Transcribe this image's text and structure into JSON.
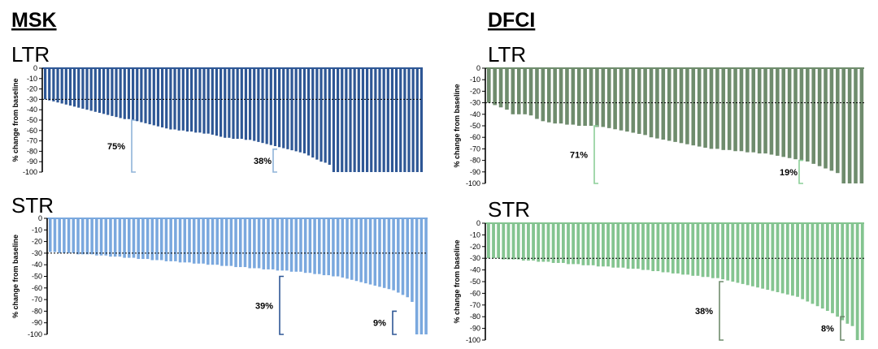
{
  "headers": {
    "left": "MSK",
    "right": "DFCI"
  },
  "colors": {
    "msk_ltr": "#2e5795",
    "msk_str": "#7aa8de",
    "dfci_ltr": "#6f8c6d",
    "dfci_str": "#84c490",
    "msk_ltr_bracket": "#8fb4d9",
    "msk_str_bracket": "#2e5795",
    "dfci_ltr_bracket": "#8ccf98",
    "dfci_str_bracket": "#6f8c6d"
  },
  "chart_data": [
    {
      "id": "msk-ltr",
      "type": "bar",
      "title": "LTR",
      "ylabel": "% change from baseline",
      "ylim": [
        -100,
        0
      ],
      "yticks": [
        "0",
        "-10",
        "-20",
        "-30",
        "-40",
        "-50",
        "-60",
        "-70",
        "-80",
        "-90",
        "-100"
      ],
      "threshold": -30,
      "values": [
        -30,
        -31,
        -32,
        -33,
        -34,
        -35,
        -36,
        -37,
        -38,
        -39,
        -40,
        -41,
        -42,
        -43,
        -44,
        -45,
        -46,
        -47,
        -48,
        -49,
        -49,
        -50,
        -51,
        -52,
        -53,
        -54,
        -55,
        -56,
        -57,
        -58,
        -59,
        -59,
        -60,
        -60,
        -61,
        -61,
        -62,
        -62,
        -63,
        -63,
        -64,
        -65,
        -66,
        -67,
        -67,
        -68,
        -68,
        -68,
        -69,
        -69,
        -70,
        -71,
        -72,
        -73,
        -74,
        -75,
        -76,
        -77,
        -78,
        -79,
        -80,
        -81,
        -82,
        -84,
        -86,
        -88,
        -90,
        -91,
        -93,
        -100,
        -100,
        -100,
        -100,
        -100,
        -100,
        -100,
        -100,
        -100,
        -100,
        -100,
        -100,
        -100,
        -100,
        -100,
        -100,
        -100,
        -100,
        -100,
        -100,
        -100,
        -100
      ],
      "annotations": [
        {
          "text": "75%",
          "from": -50,
          "to": -100
        },
        {
          "text": "38%",
          "from": -78,
          "to": -100
        }
      ]
    },
    {
      "id": "msk-str",
      "type": "bar",
      "title": "STR",
      "ylabel": "% change from baseline",
      "ylim": [
        -100,
        0
      ],
      "yticks": [
        "0",
        "-10",
        "-20",
        "-30",
        "-40",
        "-50",
        "-60",
        "-70",
        "-80",
        "-90",
        "-100"
      ],
      "threshold": -30,
      "values": [
        -29,
        -29,
        -30,
        -30,
        -30,
        -30,
        -31,
        -31,
        -31,
        -31,
        -32,
        -32,
        -32,
        -33,
        -33,
        -33,
        -34,
        -34,
        -34,
        -35,
        -35,
        -35,
        -36,
        -36,
        -36,
        -37,
        -37,
        -37,
        -38,
        -38,
        -38,
        -39,
        -39,
        -39,
        -40,
        -40,
        -40,
        -41,
        -41,
        -41,
        -42,
        -42,
        -42,
        -43,
        -43,
        -43,
        -44,
        -44,
        -44,
        -45,
        -45,
        -45,
        -46,
        -46,
        -46,
        -47,
        -47,
        -48,
        -48,
        -49,
        -49,
        -50,
        -50,
        -51,
        -52,
        -53,
        -54,
        -55,
        -56,
        -57,
        -58,
        -59,
        -60,
        -61,
        -62,
        -64,
        -66,
        -68,
        -72,
        -100,
        -100,
        -100
      ],
      "annotations": [
        {
          "text": "39%",
          "from": -50,
          "to": -100
        },
        {
          "text": "9%",
          "from": -80,
          "to": -100
        }
      ]
    },
    {
      "id": "dfci-ltr",
      "type": "bar",
      "title": "LTR",
      "ylabel": "% change from baseline",
      "ylim": [
        -100,
        0
      ],
      "yticks": [
        "0",
        "-10",
        "-20",
        "-30",
        "-40",
        "-50",
        "-60",
        "-70",
        "-80",
        "-90",
        "-100"
      ],
      "threshold": -30,
      "values": [
        -30,
        -32,
        -34,
        -36,
        -40,
        -40,
        -40,
        -41,
        -44,
        -46,
        -47,
        -48,
        -48,
        -49,
        -49,
        -50,
        -50,
        -50,
        -51,
        -51,
        -52,
        -53,
        -54,
        -55,
        -56,
        -57,
        -58,
        -60,
        -61,
        -62,
        -63,
        -64,
        -65,
        -66,
        -67,
        -68,
        -69,
        -70,
        -70,
        -71,
        -71,
        -72,
        -72,
        -73,
        -73,
        -74,
        -74,
        -75,
        -76,
        -77,
        -78,
        -79,
        -80,
        -81,
        -83,
        -85,
        -87,
        -89,
        -91,
        -100,
        -100,
        -100,
        -100
      ],
      "annotations": [
        {
          "text": "71%",
          "from": -50,
          "to": -100
        },
        {
          "text": "19%",
          "from": -80,
          "to": -100
        }
      ]
    },
    {
      "id": "dfci-str",
      "type": "bar",
      "title": "STR",
      "ylabel": "% change from baseline",
      "ylim": [
        -100,
        0
      ],
      "yticks": [
        "0",
        "-10",
        "-20",
        "-30",
        "-40",
        "-50",
        "-60",
        "-70",
        "-80",
        "-90",
        "-100"
      ],
      "threshold": -30,
      "values": [
        -30,
        -30,
        -30,
        -31,
        -31,
        -31,
        -31,
        -32,
        -32,
        -32,
        -33,
        -33,
        -33,
        -34,
        -34,
        -34,
        -35,
        -35,
        -35,
        -36,
        -36,
        -36,
        -37,
        -37,
        -37,
        -38,
        -38,
        -38,
        -39,
        -39,
        -39,
        -40,
        -40,
        -41,
        -41,
        -42,
        -42,
        -43,
        -43,
        -44,
        -44,
        -45,
        -45,
        -46,
        -46,
        -47,
        -47,
        -48,
        -49,
        -50,
        -51,
        -52,
        -53,
        -54,
        -55,
        -56,
        -57,
        -58,
        -59,
        -60,
        -61,
        -62,
        -63,
        -65,
        -67,
        -69,
        -71,
        -73,
        -75,
        -77,
        -80,
        -83,
        -86,
        -88,
        -100,
        -100
      ],
      "annotations": [
        {
          "text": "38%",
          "from": -50,
          "to": -100
        },
        {
          "text": "8%",
          "from": -80,
          "to": -100
        }
      ]
    }
  ]
}
